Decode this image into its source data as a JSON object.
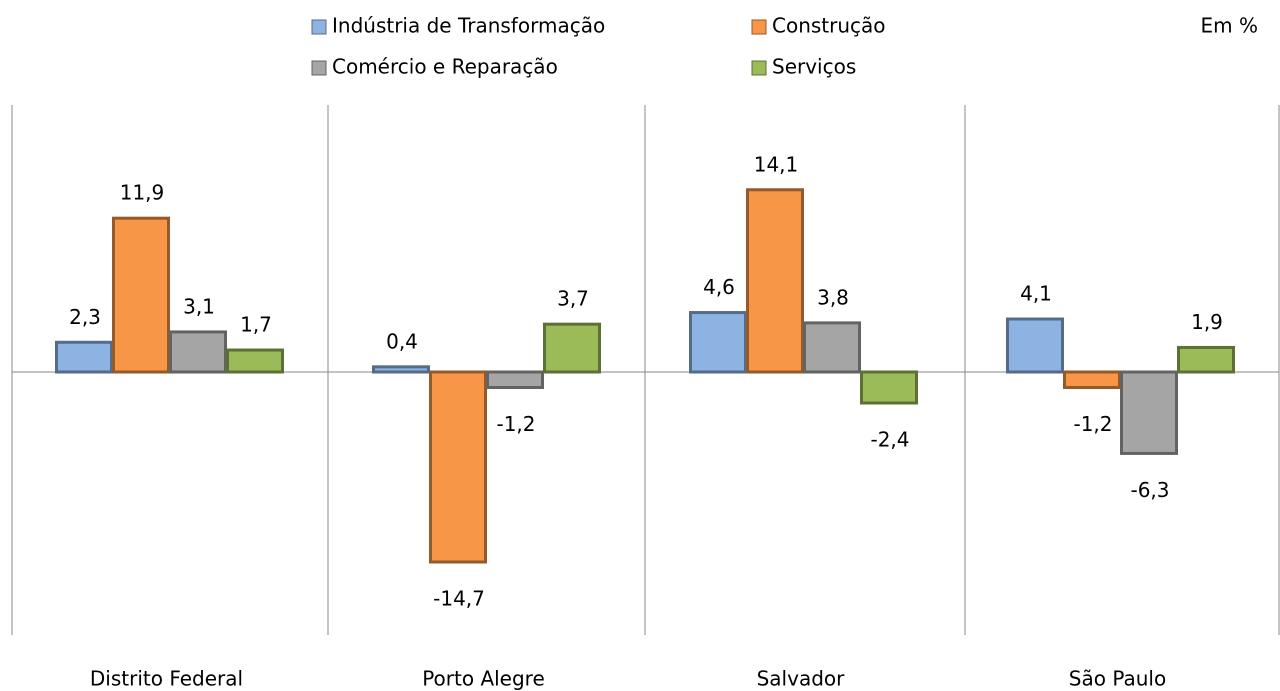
{
  "chart_data": {
    "type": "bar",
    "annotation": "Em %",
    "categories": [
      "Distrito Federal",
      "Porto Alegre",
      "Salvador",
      "São Paulo"
    ],
    "series": [
      {
        "name": "Indústria de Transformação",
        "color": "#8db3e2",
        "values": [
          2.3,
          0.4,
          4.6,
          4.1
        ],
        "value_labels": [
          "2,3",
          "0,4",
          "4,6",
          "4,1"
        ]
      },
      {
        "name": "Construção",
        "color": "#f79646",
        "values": [
          11.9,
          -14.7,
          14.1,
          -1.2
        ],
        "value_labels": [
          "11,9",
          "-14,7",
          "14,1",
          "-1,2"
        ]
      },
      {
        "name": "Comércio e Reparação",
        "color": "#a5a5a5",
        "values": [
          3.1,
          -1.2,
          3.8,
          -6.3
        ],
        "value_labels": [
          "3,1",
          "-1,2",
          "3,8",
          "-6,3"
        ]
      },
      {
        "name": "Serviços",
        "color": "#9bbb59",
        "values": [
          1.7,
          3.7,
          -2.4,
          1.9
        ],
        "value_labels": [
          "1,7",
          "3,7",
          "-2,4",
          "1,9"
        ]
      }
    ]
  }
}
